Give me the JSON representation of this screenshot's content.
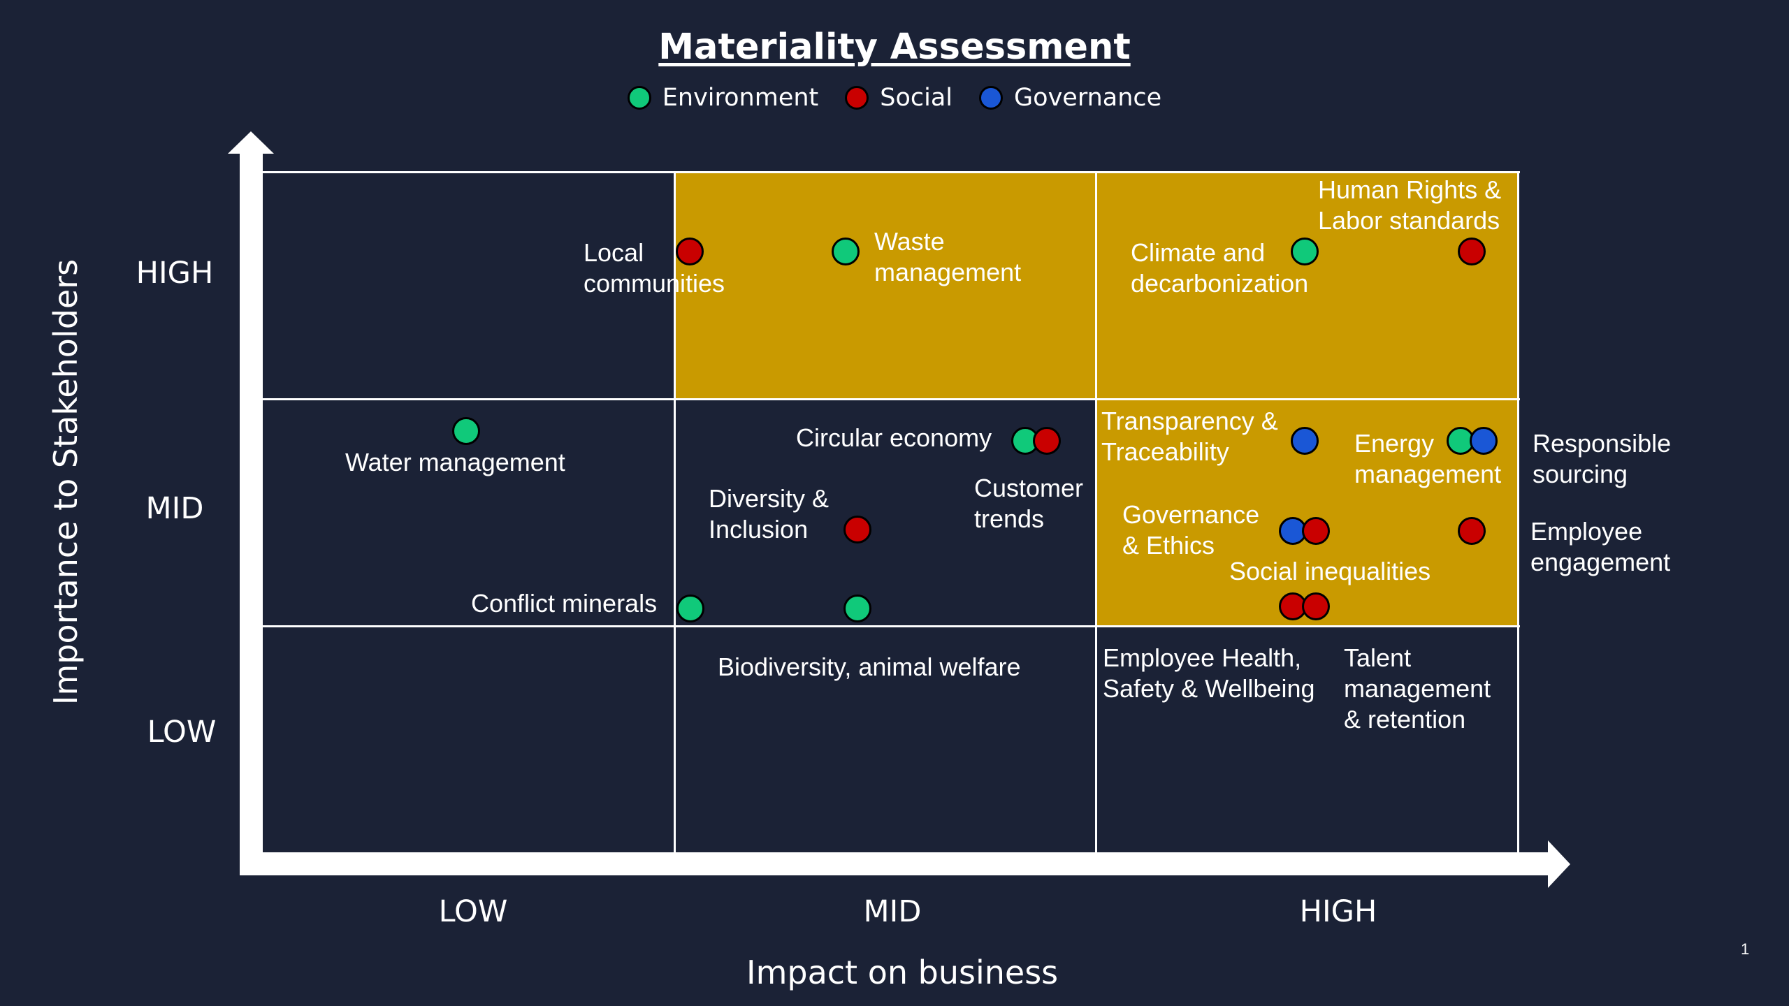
{
  "title": "Materiality Assessment",
  "legend": [
    {
      "label": "Environment",
      "color": "#10c97a"
    },
    {
      "label": "Social",
      "color": "#c90000"
    },
    {
      "label": "Governance",
      "color": "#1a57d6"
    }
  ],
  "colors": {
    "background": "#1b2236",
    "highlight": "#c99a00",
    "grid": "#ffffff"
  },
  "axes": {
    "x_title": "Impact on business",
    "y_title": "Importance to Stakeholders",
    "x_ticks": [
      "LOW",
      "MID",
      "HIGH"
    ],
    "y_ticks": [
      "HIGH",
      "MID",
      "LOW"
    ]
  },
  "labels": {
    "local_communities": "Local\ncommunities",
    "waste_management": "Waste\nmanagement",
    "climate": "Climate and\ndecarbonization",
    "human_rights": "Human Rights &\nLabor standards",
    "water_management": "Water management",
    "circular_economy": "Circular economy",
    "transparency": "Transparency &\nTraceability",
    "energy_management": "Energy\nmanagement",
    "responsible_sourcing": "Responsible\nsourcing",
    "diversity": "Diversity &\nInclusion",
    "customer_trends": "Customer\ntrends",
    "governance_ethics": "Governance\n& Ethics",
    "employee_engagement": "Employee\nengagement",
    "social_inequalities": "Social inequalities",
    "conflict_minerals": "Conflict minerals",
    "biodiversity": "Biodiversity, animal welfare",
    "employee_health": "Employee Health,\nSafety & Wellbeing",
    "talent_management": "Talent\nmanagement\n& retention"
  },
  "page_number": "1"
}
